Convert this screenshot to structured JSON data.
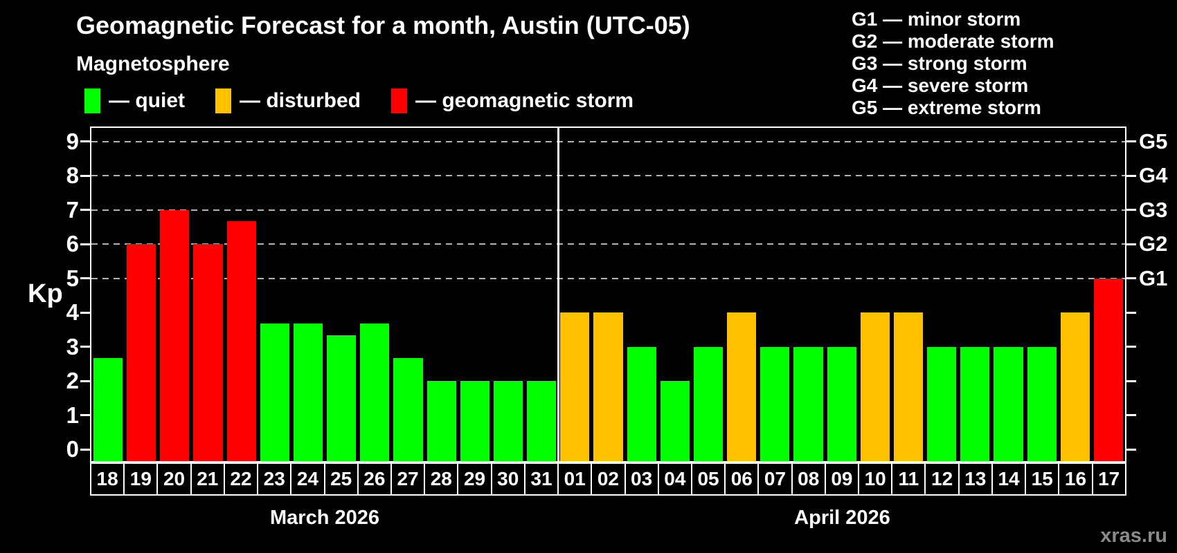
{
  "header": {
    "title": "Geomagnetic Forecast for a month, Austin (UTC-05)"
  },
  "legend": {
    "title": "Magnetosphere",
    "items": [
      {
        "name": "quiet",
        "label": "— quiet",
        "color": "#00ff00"
      },
      {
        "name": "disturbed",
        "label": "— disturbed",
        "color": "#ffc000"
      },
      {
        "name": "storm",
        "label": "— geomagnetic storm",
        "color": "#ff0000"
      }
    ]
  },
  "g_legend": [
    "G1 — minor storm",
    "G2 — moderate storm",
    "G3 — strong storm",
    "G4 — severe storm",
    "G5 — extreme storm"
  ],
  "footer": {
    "watermark": "xras.ru"
  },
  "chart_data": {
    "type": "bar",
    "title": "Geomagnetic Forecast for a month, Austin (UTC-05)",
    "xlabel": "",
    "ylabel": "Kp",
    "ylim": [
      0,
      9
    ],
    "yticks": [
      0,
      1,
      2,
      3,
      4,
      5,
      6,
      7,
      8,
      9
    ],
    "legend_position": "top",
    "grid": "dashed horizontal lines at Kp 5–9 only",
    "grid_levels": [
      {
        "kp": 5,
        "label": "G1"
      },
      {
        "kp": 6,
        "label": "G2"
      },
      {
        "kp": 7,
        "label": "G3"
      },
      {
        "kp": 8,
        "label": "G4"
      },
      {
        "kp": 9,
        "label": "G5"
      }
    ],
    "status_colors": {
      "quiet": "#00ff00",
      "disturbed": "#ffc000",
      "storm": "#ff0000"
    },
    "months": [
      {
        "label": "March 2026",
        "days": [
          {
            "day": "18",
            "kp": 2.67,
            "status": "quiet"
          },
          {
            "day": "19",
            "kp": 6,
            "status": "storm"
          },
          {
            "day": "20",
            "kp": 7,
            "status": "storm"
          },
          {
            "day": "21",
            "kp": 6,
            "status": "storm"
          },
          {
            "day": "22",
            "kp": 6.67,
            "status": "storm"
          },
          {
            "day": "23",
            "kp": 3.67,
            "status": "quiet"
          },
          {
            "day": "24",
            "kp": 3.67,
            "status": "quiet"
          },
          {
            "day": "25",
            "kp": 3.33,
            "status": "quiet"
          },
          {
            "day": "26",
            "kp": 3.67,
            "status": "quiet"
          },
          {
            "day": "27",
            "kp": 2.67,
            "status": "quiet"
          },
          {
            "day": "28",
            "kp": 2,
            "status": "quiet"
          },
          {
            "day": "29",
            "kp": 2,
            "status": "quiet"
          },
          {
            "day": "30",
            "kp": 2,
            "status": "quiet"
          },
          {
            "day": "31",
            "kp": 2,
            "status": "quiet"
          }
        ]
      },
      {
        "label": "April 2026",
        "days": [
          {
            "day": "01",
            "kp": 4,
            "status": "disturbed"
          },
          {
            "day": "02",
            "kp": 4,
            "status": "disturbed"
          },
          {
            "day": "03",
            "kp": 3,
            "status": "quiet"
          },
          {
            "day": "04",
            "kp": 2,
            "status": "quiet"
          },
          {
            "day": "05",
            "kp": 3,
            "status": "quiet"
          },
          {
            "day": "06",
            "kp": 4,
            "status": "disturbed"
          },
          {
            "day": "07",
            "kp": 3,
            "status": "quiet"
          },
          {
            "day": "08",
            "kp": 3,
            "status": "quiet"
          },
          {
            "day": "09",
            "kp": 3,
            "status": "quiet"
          },
          {
            "day": "10",
            "kp": 4,
            "status": "disturbed"
          },
          {
            "day": "11",
            "kp": 4,
            "status": "disturbed"
          },
          {
            "day": "12",
            "kp": 3,
            "status": "quiet"
          },
          {
            "day": "13",
            "kp": 3,
            "status": "quiet"
          },
          {
            "day": "14",
            "kp": 3,
            "status": "quiet"
          },
          {
            "day": "15",
            "kp": 3,
            "status": "quiet"
          },
          {
            "day": "16",
            "kp": 4,
            "status": "disturbed"
          },
          {
            "day": "17",
            "kp": 5,
            "status": "storm"
          }
        ]
      }
    ]
  }
}
